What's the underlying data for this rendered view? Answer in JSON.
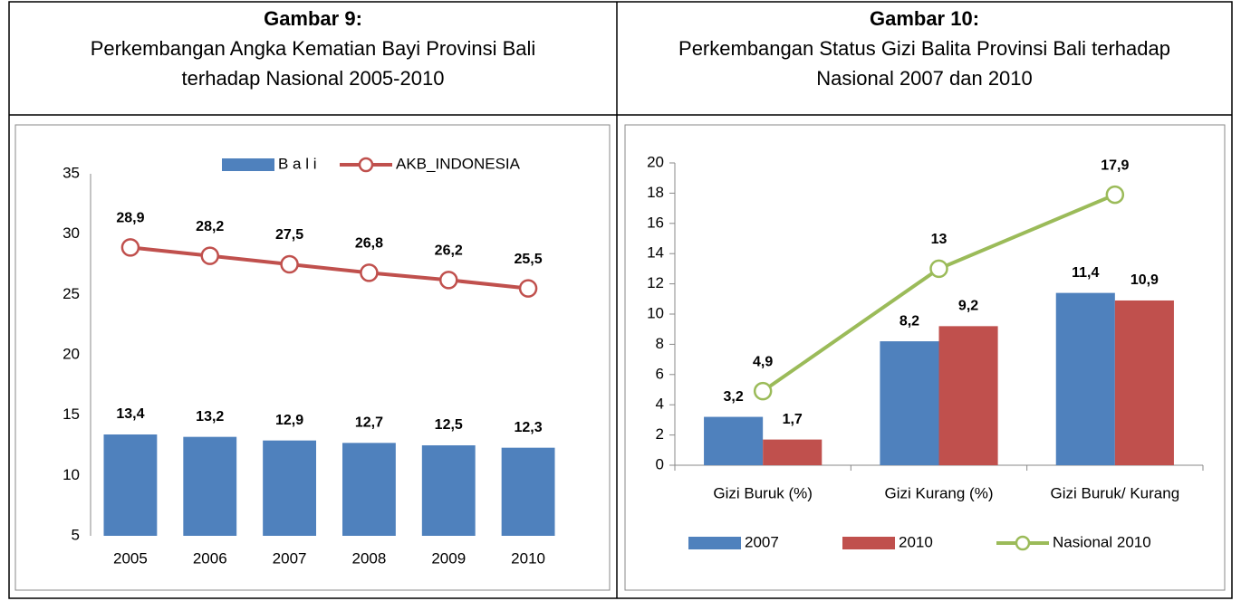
{
  "chart_data": [
    {
      "type": "combo",
      "figure_label": "Gambar 9:",
      "title": "Perkembangan Angka Kematian Bayi Provinsi Bali terhadap Nasional 2005-2010",
      "categories": [
        "2005",
        "2006",
        "2007",
        "2008",
        "2009",
        "2010"
      ],
      "series": [
        {
          "name": "B a l i",
          "type": "bar",
          "color": "#4f81bd",
          "values": [
            13.4,
            13.2,
            12.9,
            12.7,
            12.5,
            12.3
          ],
          "value_labels": [
            "13,4",
            "13,2",
            "12,9",
            "12,7",
            "12,5",
            "12,3"
          ]
        },
        {
          "name": "AKB_INDONESIA",
          "type": "line",
          "color": "#c0504d",
          "values": [
            28.9,
            28.2,
            27.5,
            26.8,
            26.2,
            25.5
          ],
          "value_labels": [
            "28,9",
            "28,2",
            "27,5",
            "26,8",
            "26,2",
            "25,5"
          ]
        }
      ],
      "ylim": [
        5,
        35
      ],
      "yticks": [
        5,
        10,
        15,
        20,
        25,
        30,
        35
      ],
      "grid": false,
      "legend": "top"
    },
    {
      "type": "combo",
      "figure_label": "Gambar 10:",
      "title": "Perkembangan Status Gizi Balita Provinsi Bali terhadap Nasional 2007 dan 2010",
      "categories": [
        "Gizi Buruk (%)",
        "Gizi Kurang (%)",
        "Gizi Buruk/ Kurang"
      ],
      "series": [
        {
          "name": "2007",
          "type": "bar",
          "color": "#4f81bd",
          "values": [
            3.2,
            8.2,
            11.4
          ],
          "value_labels": [
            "3,2",
            "8,2",
            "11,4"
          ]
        },
        {
          "name": "2010",
          "type": "bar",
          "color": "#c0504d",
          "values": [
            1.7,
            9.2,
            10.9
          ],
          "value_labels": [
            "1,7",
            "9,2",
            "10,9"
          ]
        },
        {
          "name": "Nasional 2010",
          "type": "line",
          "color": "#9bbb59",
          "values": [
            4.9,
            13,
            17.9
          ],
          "value_labels": [
            "4,9",
            "13",
            "17,9"
          ]
        }
      ],
      "ylim": [
        0,
        20
      ],
      "yticks": [
        0,
        2,
        4,
        6,
        8,
        10,
        12,
        14,
        16,
        18,
        20
      ],
      "grid": false,
      "legend": "bottom"
    }
  ]
}
